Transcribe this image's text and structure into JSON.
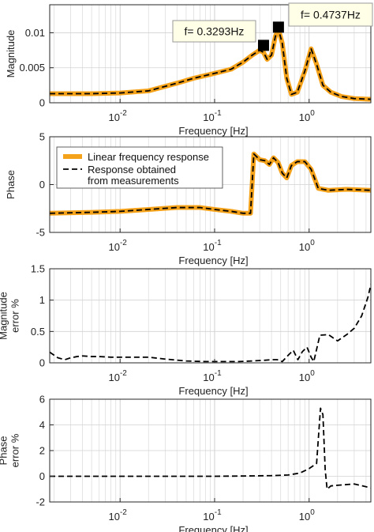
{
  "chart_data": [
    {
      "type": "line",
      "xscale": "log",
      "xlim": [
        0.0018,
        4.5
      ],
      "ylim": [
        0,
        0.014
      ],
      "xlabel": "Frequency [Hz]",
      "ylabel": "Magnitude",
      "xticks": [
        {
          "value": 0.01,
          "base": "10",
          "exp": "-2"
        },
        {
          "value": 0.1,
          "base": "10",
          "exp": "-1"
        },
        {
          "value": 1,
          "base": "10",
          "exp": "0"
        }
      ],
      "yticks": [
        {
          "value": 0,
          "label": "0"
        },
        {
          "value": 0.005,
          "label": "0.005"
        },
        {
          "value": 0.01,
          "label": "0.01"
        }
      ],
      "series": [
        {
          "name": "Linear frequency response",
          "color": "#f5a21b",
          "style": "solid",
          "x": [
            0.0018,
            0.003,
            0.005,
            0.01,
            0.02,
            0.04,
            0.06,
            0.1,
            0.15,
            0.2,
            0.25,
            0.3,
            0.3293,
            0.36,
            0.4,
            0.44,
            0.4737,
            0.52,
            0.58,
            0.65,
            0.75,
            0.9,
            1.05,
            1.2,
            1.4,
            1.7,
            2.2,
            3,
            4.5
          ],
          "y": [
            0.0013,
            0.0013,
            0.0013,
            0.0014,
            0.0017,
            0.0028,
            0.0035,
            0.0042,
            0.0048,
            0.0058,
            0.0068,
            0.0075,
            0.0072,
            0.0062,
            0.0068,
            0.0095,
            0.0105,
            0.0085,
            0.0035,
            0.0012,
            0.0015,
            0.0045,
            0.0077,
            0.0055,
            0.0025,
            0.0015,
            0.0009,
            0.0006,
            0.0005
          ]
        },
        {
          "name": "Response obtained from measurements",
          "color": "#000000",
          "style": "dashed",
          "x": [
            0.0018,
            0.003,
            0.005,
            0.01,
            0.02,
            0.04,
            0.06,
            0.1,
            0.15,
            0.2,
            0.25,
            0.3,
            0.3293,
            0.36,
            0.4,
            0.44,
            0.4737,
            0.52,
            0.58,
            0.65,
            0.75,
            0.9,
            1.05,
            1.2,
            1.4,
            1.7,
            2.2,
            3,
            4.5
          ],
          "y": [
            0.0013,
            0.0013,
            0.0013,
            0.0014,
            0.0017,
            0.0028,
            0.0035,
            0.0042,
            0.0048,
            0.0058,
            0.0068,
            0.0075,
            0.0072,
            0.0062,
            0.0068,
            0.0095,
            0.0105,
            0.0085,
            0.0035,
            0.0012,
            0.0015,
            0.0045,
            0.0077,
            0.0055,
            0.0025,
            0.0015,
            0.0009,
            0.0006,
            0.0005
          ]
        }
      ],
      "markers": [
        {
          "x": 0.3293,
          "y": 0.0082,
          "label": "f= 0.3293Hz"
        },
        {
          "x": 0.4737,
          "y": 0.0108,
          "label": "f= 0.4737Hz"
        }
      ]
    },
    {
      "type": "line",
      "xscale": "log",
      "xlim": [
        0.0018,
        4.5
      ],
      "ylim": [
        -5,
        5
      ],
      "xlabel": "Frequency [Hz]",
      "ylabel": "Phase",
      "xticks": [
        {
          "value": 0.01,
          "base": "10",
          "exp": "-2"
        },
        {
          "value": 0.1,
          "base": "10",
          "exp": "-1"
        },
        {
          "value": 1,
          "base": "10",
          "exp": "0"
        }
      ],
      "yticks": [
        {
          "value": -5,
          "label": "-5"
        },
        {
          "value": 0,
          "label": "0"
        },
        {
          "value": 5,
          "label": "5"
        }
      ],
      "legend": {
        "placement": "top-left",
        "entries": [
          {
            "lines": [
              "Linear frequency response"
            ],
            "color": "#f5a21b",
            "style": "solid"
          },
          {
            "lines": [
              "Response obtained",
              "from measurements"
            ],
            "color": "#000000",
            "style": "dashed"
          }
        ]
      },
      "series": [
        {
          "name": "Linear frequency response",
          "color": "#f5a21b",
          "style": "solid",
          "x": [
            0.0018,
            0.005,
            0.01,
            0.02,
            0.04,
            0.07,
            0.1,
            0.15,
            0.2,
            0.24,
            0.26,
            0.3,
            0.34,
            0.38,
            0.42,
            0.47,
            0.52,
            0.58,
            0.65,
            0.75,
            0.9,
            1.05,
            1.25,
            1.6,
            2.5,
            4.5
          ],
          "y": [
            -3.0,
            -2.9,
            -2.8,
            -2.6,
            -2.4,
            -2.4,
            -2.6,
            -2.8,
            -3.0,
            -3.0,
            3.2,
            2.6,
            2.5,
            2.1,
            2.8,
            2.3,
            1.2,
            0.7,
            2.0,
            2.4,
            2.4,
            1.6,
            -0.4,
            -0.6,
            -0.5,
            -0.6
          ]
        },
        {
          "name": "Response obtained from measurements",
          "color": "#000000",
          "style": "dashed",
          "x": [
            0.0018,
            0.005,
            0.01,
            0.02,
            0.04,
            0.07,
            0.1,
            0.15,
            0.2,
            0.24,
            0.26,
            0.3,
            0.34,
            0.38,
            0.42,
            0.47,
            0.52,
            0.58,
            0.65,
            0.75,
            0.9,
            1.05,
            1.25,
            1.6,
            2.5,
            4.5
          ],
          "y": [
            -3.0,
            -2.9,
            -2.8,
            -2.6,
            -2.4,
            -2.4,
            -2.6,
            -2.8,
            -3.0,
            -3.0,
            3.2,
            2.6,
            2.5,
            2.1,
            2.8,
            2.3,
            1.2,
            0.7,
            2.0,
            2.4,
            2.4,
            1.6,
            -0.4,
            -0.6,
            -0.5,
            -0.6
          ]
        }
      ]
    },
    {
      "type": "line",
      "xscale": "log",
      "xlim": [
        0.0018,
        4.5
      ],
      "ylim": [
        0,
        1.5
      ],
      "xlabel": "Frequency [Hz]",
      "ylabel_lines": [
        "Magnitude",
        "error %"
      ],
      "xticks": [
        {
          "value": 0.01,
          "base": "10",
          "exp": "-2"
        },
        {
          "value": 0.1,
          "base": "10",
          "exp": "-1"
        },
        {
          "value": 1,
          "base": "10",
          "exp": "0"
        }
      ],
      "yticks": [
        {
          "value": 0,
          "label": "0"
        },
        {
          "value": 0.5,
          "label": "0.5"
        },
        {
          "value": 1,
          "label": "1"
        },
        {
          "value": 1.5,
          "label": "1.5"
        }
      ],
      "series": [
        {
          "color": "#000000",
          "style": "dashed",
          "x": [
            0.0018,
            0.0022,
            0.0026,
            0.003,
            0.0035,
            0.004,
            0.005,
            0.006,
            0.008,
            0.01,
            0.015,
            0.02,
            0.03,
            0.05,
            0.08,
            0.12,
            0.18,
            0.25,
            0.33,
            0.4,
            0.46,
            0.52,
            0.6,
            0.68,
            0.76,
            0.85,
            0.95,
            1.05,
            1.12,
            1.3,
            1.6,
            2.0,
            2.5,
            3.0,
            3.6,
            4.2,
            4.5
          ],
          "y": [
            0.17,
            0.08,
            0.05,
            0.08,
            0.1,
            0.11,
            0.1,
            0.1,
            0.09,
            0.09,
            0.09,
            0.09,
            0.06,
            0.03,
            0.02,
            0.02,
            0.02,
            0.03,
            0.04,
            0.05,
            0.05,
            0.02,
            0.12,
            0.2,
            0.05,
            0.18,
            0.25,
            0.09,
            0.02,
            0.44,
            0.45,
            0.35,
            0.45,
            0.55,
            0.75,
            1.05,
            1.25
          ]
        }
      ]
    },
    {
      "type": "line",
      "xscale": "log",
      "xlim": [
        0.0018,
        4.5
      ],
      "ylim": [
        -2,
        6
      ],
      "xlabel": "Frequency [Hz]",
      "ylabel_lines": [
        "Phase",
        "error %"
      ],
      "xticks": [
        {
          "value": 0.01,
          "base": "10",
          "exp": "-2"
        },
        {
          "value": 0.1,
          "base": "10",
          "exp": "-1"
        },
        {
          "value": 1,
          "base": "10",
          "exp": "0"
        }
      ],
      "yticks": [
        {
          "value": -2,
          "label": "-2"
        },
        {
          "value": 0,
          "label": "0"
        },
        {
          "value": 2,
          "label": "2"
        },
        {
          "value": 4,
          "label": "4"
        },
        {
          "value": 6,
          "label": "6"
        }
      ],
      "series": [
        {
          "color": "#000000",
          "style": "dashed",
          "x": [
            0.0018,
            0.01,
            0.05,
            0.1,
            0.2,
            0.4,
            0.6,
            0.8,
            1.0,
            1.2,
            1.32,
            1.4,
            1.48,
            1.55,
            1.7,
            2.0,
            3.0,
            4.5
          ],
          "y": [
            0.0,
            0.0,
            0.0,
            0.0,
            0.02,
            0.05,
            0.1,
            0.25,
            0.6,
            1.0,
            5.3,
            4.8,
            0.5,
            -1.0,
            -0.75,
            -0.7,
            -0.6,
            -0.9
          ]
        }
      ]
    }
  ]
}
